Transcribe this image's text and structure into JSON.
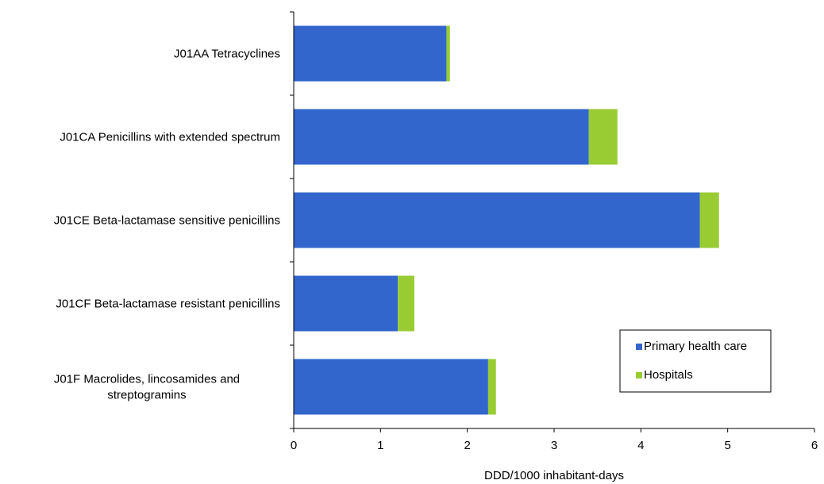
{
  "chart_data": {
    "type": "bar",
    "orientation": "horizontal",
    "stacked": true,
    "categories": [
      "J01AA Tetracyclines",
      "J01CA Penicillins with extended spectrum",
      "J01CE Beta-lactamase sensitive penicillins",
      "J01CF Beta-lactamase resistant penicillins",
      "J01F Macrolides, lincosamides and streptogramins"
    ],
    "series": [
      {
        "name": "Primary health care",
        "values": [
          1.76,
          3.4,
          4.68,
          1.2,
          2.24
        ],
        "color": "#3366cc"
      },
      {
        "name": "Hospitals",
        "values": [
          0.04,
          0.33,
          0.22,
          0.19,
          0.09
        ],
        "color": "#99cc33"
      }
    ],
    "xlabel": "DDD/1000 inhabitant-days",
    "xlim": [
      0,
      6
    ],
    "xticks": [
      "0",
      "1",
      "2",
      "3",
      "4",
      "5",
      "6"
    ],
    "grid": false,
    "legend_position": "bottom-right"
  }
}
